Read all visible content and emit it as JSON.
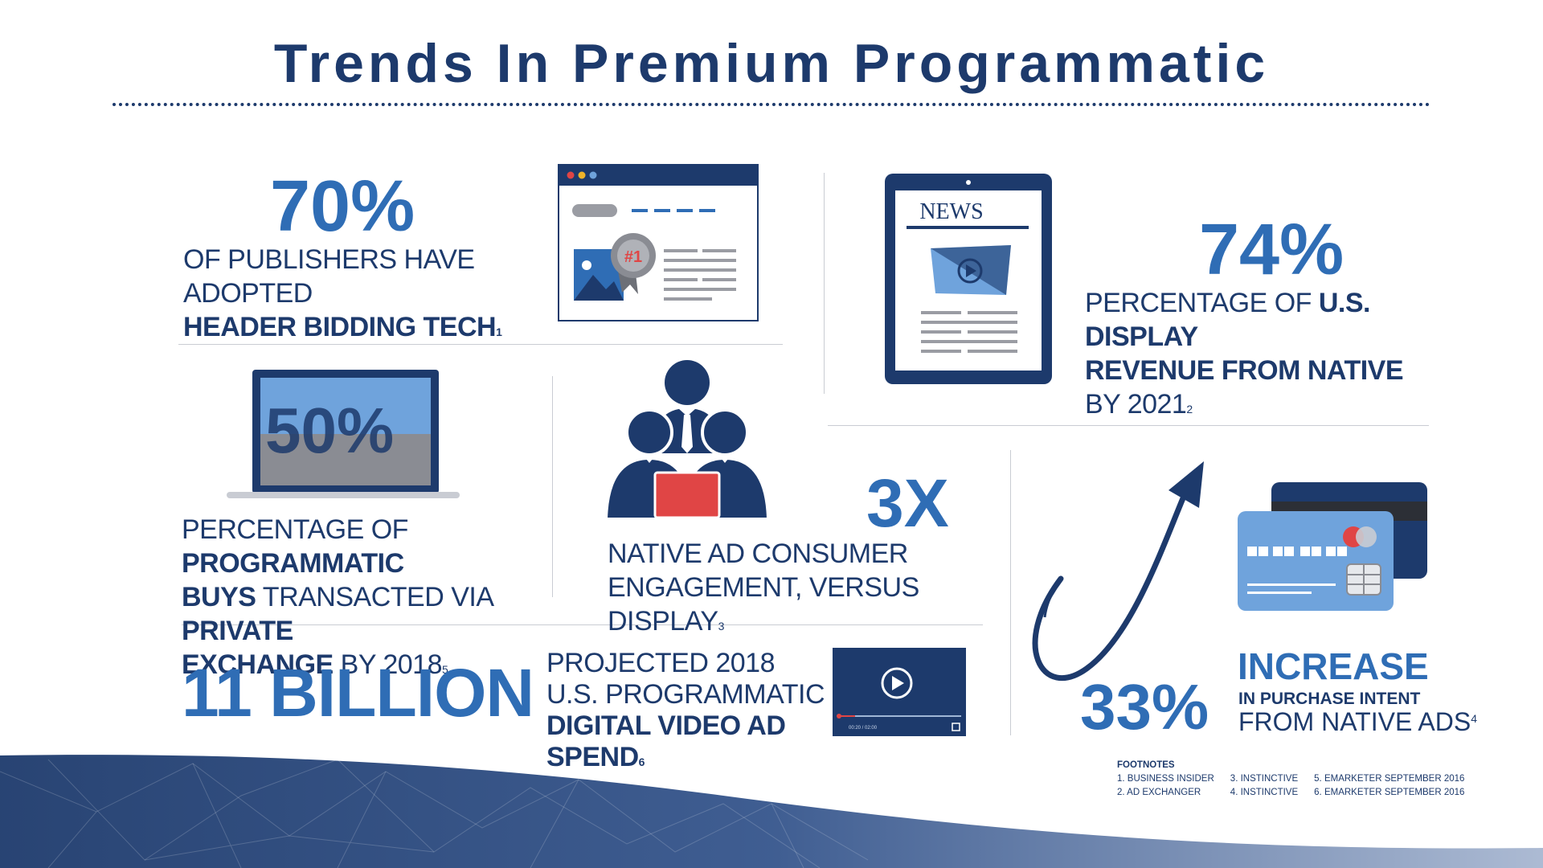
{
  "title": "Trends In Premium Programmatic",
  "stats": {
    "header_bidding": {
      "value": "70%",
      "line1": "OF PUBLISHERS HAVE ADOPTED",
      "line2_bold": "HEADER BIDDING TECH",
      "footnote_ref": "1",
      "badge": "#1"
    },
    "native_revenue": {
      "value": "74%",
      "line1_plain": "PERCENTAGE OF ",
      "line1_bold": "U.S. DISPLAY",
      "line2_bold": "REVENUE FROM NATIVE",
      "line2_plain": " BY 2021",
      "footnote_ref": "2",
      "tablet_heading": "NEWS"
    },
    "private_exchange": {
      "value": "50%",
      "l1_plain": "PERCENTAGE OF ",
      "l1_bold": "PROGRAMMATIC",
      "l2_bold": "BUYS",
      "l2_plain": " TRANSACTED VIA ",
      "l2_bold2": "PRIVATE",
      "l3_bold": "EXCHANGE",
      "l3_plain": " BY 2018",
      "footnote_ref": "5"
    },
    "engagement": {
      "value": "3X",
      "line1": "NATIVE AD CONSUMER",
      "line2": "ENGAGEMENT, VERSUS DISPLAY",
      "footnote_ref": "3"
    },
    "video_spend": {
      "value": "11 BILLION",
      "line1": "PROJECTED 2018",
      "line2": "U.S. PROGRAMMATIC",
      "line3_bold": "DIGITAL VIDEO AD SPEND",
      "footnote_ref": "6",
      "player_time": "00:20 / 02:00"
    },
    "purchase_intent": {
      "value": "33%",
      "line1": "INCREASE",
      "line2": "IN PURCHASE INTENT",
      "line3": "FROM NATIVE ADS",
      "footnote_ref": "4"
    }
  },
  "footnotes": {
    "heading": "FOOTNOTES",
    "items": [
      "1. BUSINESS INSIDER",
      "2. AD EXCHANGER",
      "3. INSTINCTIVE",
      "4. INSTINCTIVE",
      "5. EMARKETER SEPTEMBER 2016",
      "6. EMARKETER SEPTEMBER 2016"
    ]
  },
  "colors": {
    "navy": "#1d3a6c",
    "blue": "#2f6db5",
    "light_blue": "#6fa3dc",
    "red": "#e04545",
    "gray": "#8a8c93"
  },
  "icons": [
    "browser-window-icon",
    "award-ribbon-icon",
    "tablet-news-icon",
    "laptop-icon",
    "business-team-icon",
    "video-player-icon",
    "upward-arrow-icon",
    "credit-cards-icon"
  ]
}
